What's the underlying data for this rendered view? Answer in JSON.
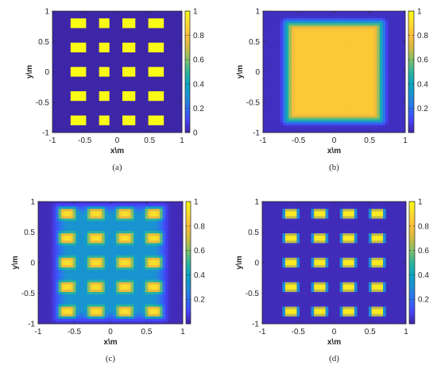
{
  "chart_data": [
    {
      "type": "heatmap",
      "panel": "a",
      "caption": "(a)",
      "xlabel": "x\\m",
      "ylabel": "y\\m",
      "xlim": [
        -1,
        1
      ],
      "ylim": [
        -1,
        1
      ],
      "xticks": [
        "-1",
        "-0.5",
        "0",
        "0.5",
        "1"
      ],
      "yticks": [
        "1",
        "0.5",
        "0",
        "-0.5",
        "-1"
      ],
      "colorbar": {
        "range": [
          0,
          1
        ],
        "ticks": [
          "1",
          "0.8",
          "0.6",
          "0.4",
          "0.2",
          "0"
        ]
      },
      "pattern": "grid",
      "grid": {
        "centers_x": [
          -0.6,
          -0.2,
          0.2,
          0.6
        ],
        "centers_y": [
          0.8,
          0.4,
          0.0,
          -0.4,
          -0.8
        ],
        "half_width": 0.1,
        "half_height": 0.08,
        "peak": 1.0,
        "background": 0.0,
        "blur": 0.0,
        "floor": 0.0
      }
    },
    {
      "type": "heatmap",
      "panel": "b",
      "caption": "(b)",
      "xlabel": "x\\m",
      "ylabel": "y\\m",
      "xlim": [
        -1,
        1
      ],
      "ylim": [
        -1,
        1
      ],
      "xticks": [
        "-1",
        "-0.5",
        "0",
        "0.5",
        "1"
      ],
      "yticks": [
        "1",
        "0.5",
        "0",
        "-0.5",
        "-1"
      ],
      "colorbar": {
        "range": [
          0,
          1
        ],
        "ticks": [
          "1",
          "0.8",
          "0.6",
          "0.4",
          "0.2"
        ]
      },
      "pattern": "plateau",
      "plateau": {
        "half_width": 0.78,
        "half_height": 0.92,
        "edge": 0.12,
        "peak": 0.84,
        "background": 0.03
      }
    },
    {
      "type": "heatmap",
      "panel": "c",
      "caption": "(c)",
      "xlabel": "x\\m",
      "ylabel": "y\\m",
      "xlim": [
        -1,
        1
      ],
      "ylim": [
        -1,
        1
      ],
      "xticks": [
        "-1",
        "-0.5",
        "0",
        "0.5",
        "1"
      ],
      "yticks": [
        "1",
        "0.5",
        "0",
        "-0.5",
        "-1"
      ],
      "colorbar": {
        "range": [
          0,
          1
        ],
        "ticks": [
          "1",
          "0.8",
          "0.6",
          "0.4",
          "0.2"
        ]
      },
      "pattern": "grid",
      "grid": {
        "centers_x": [
          -0.6,
          -0.2,
          0.2,
          0.6
        ],
        "centers_y": [
          0.8,
          0.4,
          0.0,
          -0.4,
          -0.8
        ],
        "half_width": 0.1,
        "half_height": 0.08,
        "peak": 0.92,
        "background": 0.02,
        "blur": 0.06,
        "floor": 0.3
      }
    },
    {
      "type": "heatmap",
      "panel": "d",
      "caption": "(d)",
      "xlabel": "x\\m",
      "ylabel": "y\\m",
      "xlim": [
        -1,
        1
      ],
      "ylim": [
        -1,
        1
      ],
      "xticks": [
        "-1",
        "-0.5",
        "0",
        "0.5",
        "1"
      ],
      "yticks": [
        "1",
        "0.5",
        "0",
        "-0.5",
        "-1"
      ],
      "colorbar": {
        "range": [
          0,
          1
        ],
        "ticks": [
          "1",
          "0.8",
          "0.6",
          "0.4",
          "0.2"
        ]
      },
      "pattern": "grid",
      "grid": {
        "centers_x": [
          -0.6,
          -0.2,
          0.2,
          0.6
        ],
        "centers_y": [
          0.8,
          0.4,
          0.0,
          -0.4,
          -0.8
        ],
        "half_width": 0.09,
        "half_height": 0.07,
        "peak": 0.95,
        "background": 0.02,
        "blur": 0.035,
        "floor": 0.0
      }
    }
  ],
  "colormap": [
    "#3e26a8",
    "#4743f8",
    "#2e6ef0",
    "#1e8fd5",
    "#0ba5c0",
    "#2db59b",
    "#80bf69",
    "#d0ba42",
    "#fbbc3a",
    "#fadb30",
    "#f9fb15"
  ]
}
